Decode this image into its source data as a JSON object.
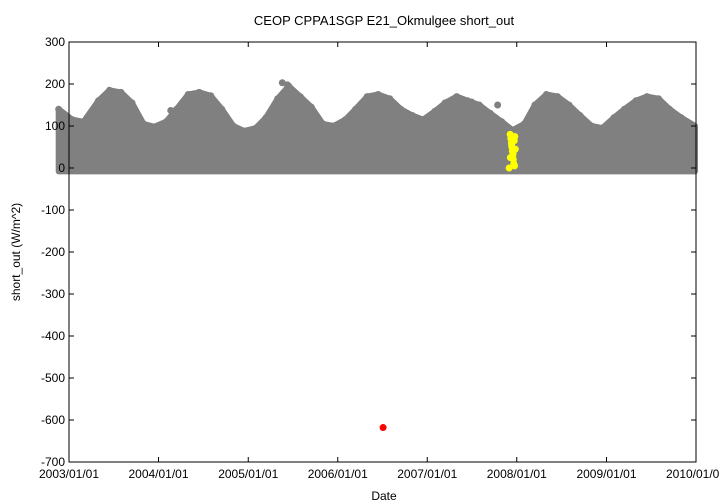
{
  "chart_data": {
    "type": "scatter",
    "title": "CEOP CPPA1SGP E21_Okmulgee  short_out",
    "xlabel": "Date",
    "ylabel": "short_out (W/m^2)",
    "xlim": [
      "2003/01/01",
      "2010/01/01"
    ],
    "ylim": [
      -700,
      300
    ],
    "yticks": [
      300,
      200,
      100,
      0,
      -100,
      -200,
      -300,
      -400,
      -500,
      -600,
      -700
    ],
    "xticks": [
      "2003/01/01",
      "2004/01/01",
      "2005/01/01",
      "2006/01/01",
      "2007/01/01",
      "2008/01/01",
      "2009/01/01",
      "2010/01/01"
    ],
    "grid": false,
    "series": [
      {
        "color": "#808080",
        "envelope_min": -8,
        "envelope_max": [
          [
            "2002/11/20",
            140
          ],
          [
            "2003/01/15",
            115
          ],
          [
            "2003/03/01",
            110
          ],
          [
            "2003/05/01",
            160
          ],
          [
            "2003/06/15",
            185
          ],
          [
            "2003/08/01",
            180
          ],
          [
            "2003/09/15",
            155
          ],
          [
            "2003/11/01",
            105
          ],
          [
            "2003/12/15",
            98
          ],
          [
            "2004/02/01",
            110
          ],
          [
            "2004/03/15",
            140
          ],
          [
            "2004/05/01",
            175
          ],
          [
            "2004/06/15",
            180
          ],
          [
            "2004/08/01",
            172
          ],
          [
            "2004/09/15",
            140
          ],
          [
            "2004/11/01",
            100
          ],
          [
            "2004/12/15",
            88
          ],
          [
            "2005/02/01",
            95
          ],
          [
            "2005/03/15",
            120
          ],
          [
            "2005/05/01",
            165
          ],
          [
            "2005/06/15",
            195
          ],
          [
            "2005/08/01",
            170
          ],
          [
            "2005/09/15",
            145
          ],
          [
            "2005/11/01",
            105
          ],
          [
            "2005/12/15",
            100
          ],
          [
            "2006/02/01",
            115
          ],
          [
            "2006/03/15",
            140
          ],
          [
            "2006/05/01",
            170
          ],
          [
            "2006/06/15",
            175
          ],
          [
            "2006/08/01",
            165
          ],
          [
            "2006/09/15",
            140
          ],
          [
            "2006/11/01",
            125
          ],
          [
            "2006/12/15",
            115
          ],
          [
            "2007/02/01",
            135
          ],
          [
            "2007/03/15",
            155
          ],
          [
            "2007/05/01",
            170
          ],
          [
            "2007/06/15",
            160
          ],
          [
            "2007/08/01",
            150
          ],
          [
            "2007/09/15",
            130
          ],
          [
            "2007/11/01",
            110
          ],
          [
            "2007/12/15",
            90
          ],
          [
            "2008/02/01",
            105
          ],
          [
            "2008/03/15",
            150
          ],
          [
            "2008/05/01",
            175
          ],
          [
            "2008/06/15",
            170
          ],
          [
            "2008/08/01",
            150
          ],
          [
            "2008/09/15",
            125
          ],
          [
            "2008/11/01",
            100
          ],
          [
            "2008/12/15",
            95
          ],
          [
            "2009/02/01",
            120
          ],
          [
            "2009/03/15",
            140
          ],
          [
            "2009/05/01",
            160
          ],
          [
            "2009/06/15",
            170
          ],
          [
            "2009/08/01",
            165
          ],
          [
            "2009/09/15",
            140
          ],
          [
            "2009/11/01",
            120
          ],
          [
            "2010/01/01",
            100
          ]
        ],
        "outliers": [
          [
            "2005/05/20",
            203
          ],
          [
            "2005/06/10",
            198
          ],
          [
            "2007/07/01",
            157
          ],
          [
            "2004/02/20",
            137
          ],
          [
            "2007/10/15",
            150
          ]
        ]
      },
      {
        "color": "#ffff00",
        "points": [
          [
            "2007/12/01",
            0
          ],
          [
            "2007/12/05",
            80
          ],
          [
            "2007/12/08",
            70
          ],
          [
            "2007/12/10",
            60
          ],
          [
            "2007/12/12",
            50
          ],
          [
            "2007/12/14",
            40
          ],
          [
            "2007/12/16",
            30
          ],
          [
            "2007/12/18",
            20
          ],
          [
            "2007/12/20",
            10
          ],
          [
            "2007/12/22",
            65
          ],
          [
            "2007/12/24",
            75
          ],
          [
            "2007/12/26",
            45
          ],
          [
            "2007/12/06",
            25
          ],
          [
            "2007/12/11",
            55
          ],
          [
            "2007/12/17",
            35
          ],
          [
            "2007/12/23",
            5
          ]
        ]
      },
      {
        "color": "#ff0000",
        "points": [
          [
            "2006/07/05",
            -618
          ]
        ]
      }
    ]
  }
}
